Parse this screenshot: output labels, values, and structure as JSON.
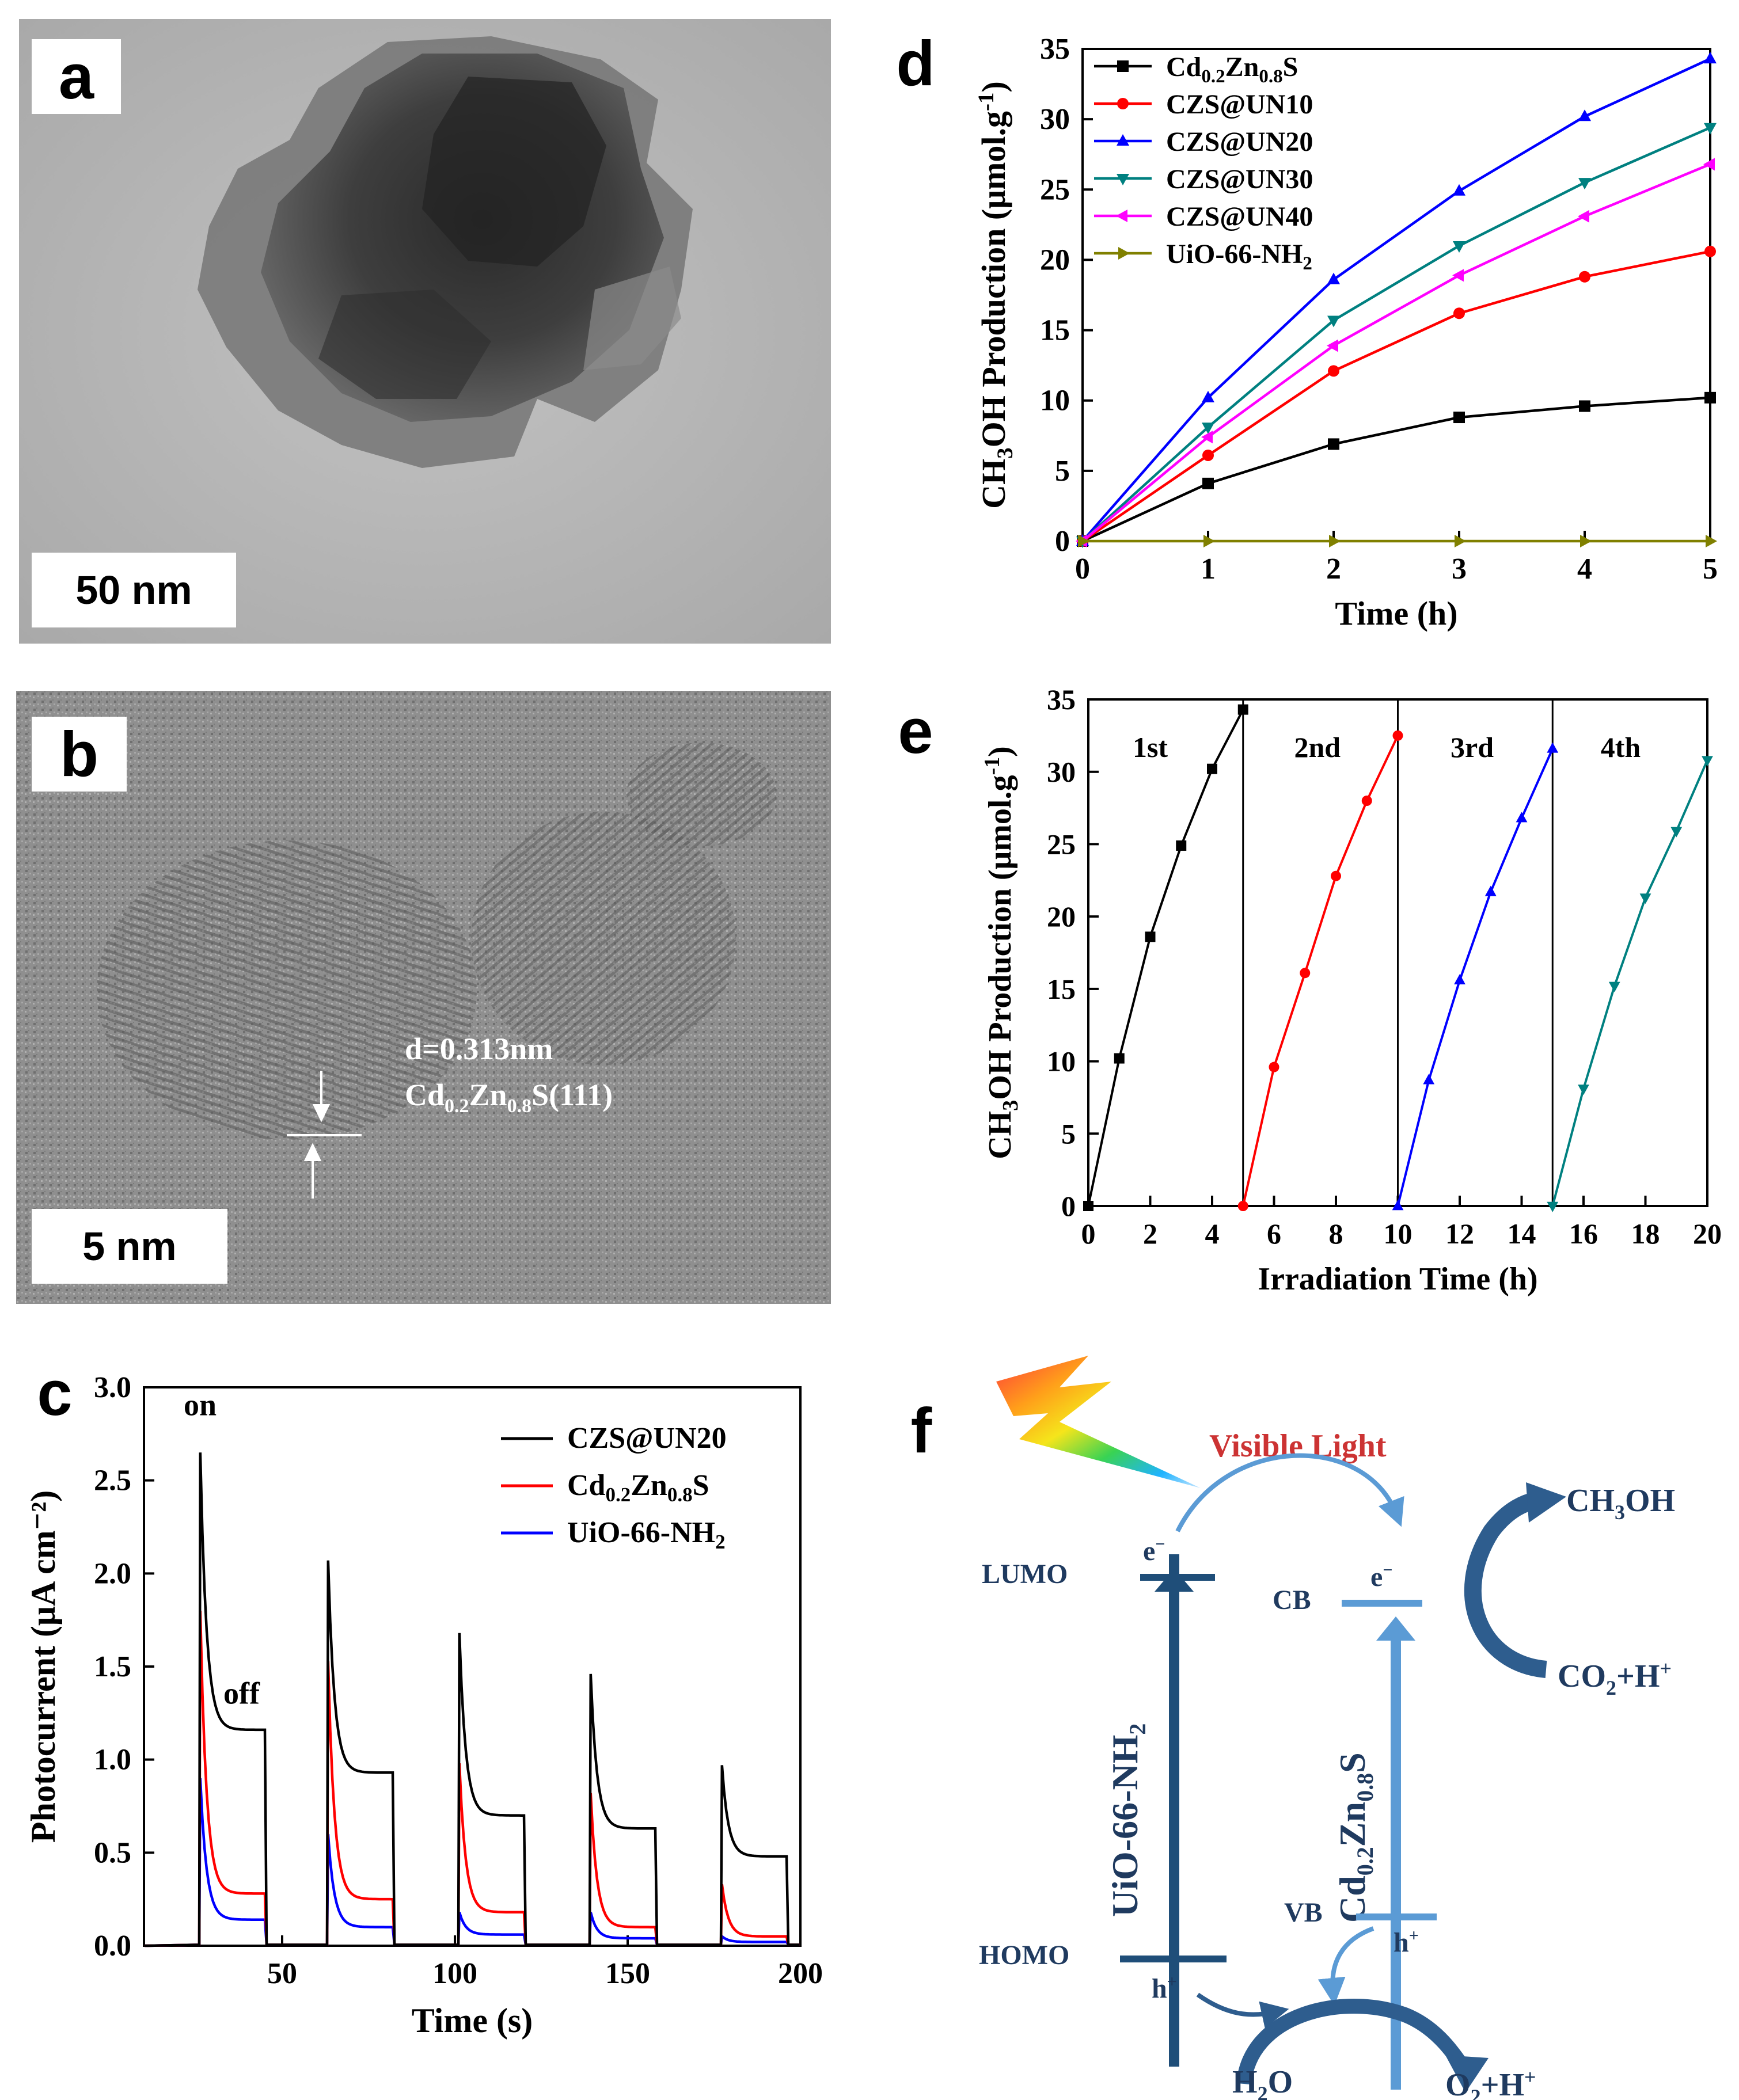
{
  "panels": {
    "a": {
      "letter": "a",
      "scale_bar": "50 nm"
    },
    "b": {
      "letter": "b",
      "scale_bar": "5 nm",
      "annotation_d": "d=0.313nm",
      "annotation_plane": [
        "Cd",
        "0.2",
        "Zn",
        "0.8",
        "S(111)"
      ]
    },
    "c": {
      "letter": "c"
    },
    "d": {
      "letter": "d"
    },
    "e": {
      "letter": "e"
    },
    "f": {
      "letter": "f"
    }
  },
  "chart_data": [
    {
      "id": "c",
      "type": "line",
      "xlabel": "Time (s)",
      "ylabel": "Photocurrent (μA cm⁻²)",
      "xlim": [
        10,
        200
      ],
      "ylim": [
        0,
        3.0
      ],
      "xticks": [
        50,
        100,
        150,
        200
      ],
      "yticks": [
        0.0,
        0.5,
        1.0,
        1.5,
        2.0,
        2.5,
        3.0
      ],
      "annotations": {
        "on": "on",
        "off": "off"
      },
      "on_periods": [
        [
          26,
          45
        ],
        [
          63,
          82
        ],
        [
          101,
          120
        ],
        [
          139,
          158
        ],
        [
          177,
          196
        ]
      ],
      "series": [
        {
          "name": "CZS@UN20",
          "color": "#000000",
          "peaks": [
            2.65,
            2.07,
            1.68,
            1.46,
            0.97
          ],
          "plateaus": [
            1.16,
            0.93,
            0.7,
            0.63,
            0.48
          ]
        },
        {
          "name": "Cd0.2Zn0.8S",
          "color": "#ff0000",
          "peaks": [
            1.8,
            1.53,
            0.98,
            0.82,
            0.33
          ],
          "plateaus": [
            0.28,
            0.25,
            0.18,
            0.1,
            0.05
          ]
        },
        {
          "name": "UiO-66-NH2",
          "color": "#0000ff",
          "peaks": [
            0.9,
            0.6,
            0.18,
            0.18,
            0.05
          ],
          "plateaus": [
            0.14,
            0.1,
            0.06,
            0.04,
            0.02
          ]
        }
      ],
      "legend": [
        {
          "text": "CZS@UN20",
          "parts": [
            "CZS@UN20"
          ]
        },
        {
          "text": "Cd0.2Zn0.8S",
          "parts": [
            "Cd",
            "0.2",
            "Zn",
            "0.8",
            "S"
          ]
        },
        {
          "text": "UiO-66-NH2",
          "parts": [
            "UiO-66-NH",
            "2"
          ]
        }
      ]
    },
    {
      "id": "d",
      "type": "line",
      "xlabel": "Time (h)",
      "ylabel": "CH3OH Production (μmol.g⁻¹)",
      "xlim": [
        0,
        5
      ],
      "ylim": [
        0,
        35
      ],
      "xticks": [
        0,
        1,
        2,
        3,
        4,
        5
      ],
      "yticks": [
        0,
        5,
        10,
        15,
        20,
        25,
        30,
        35
      ],
      "x": [
        0,
        1,
        2,
        3,
        4,
        5
      ],
      "series": [
        {
          "name": "Cd0.2Zn0.8S",
          "parts": [
            "Cd",
            "0.2",
            "Zn",
            "0.8",
            "S"
          ],
          "color": "#000000",
          "marker": "square",
          "values": [
            0,
            4.1,
            6.9,
            8.8,
            9.6,
            10.2
          ]
        },
        {
          "name": "CZS@UN10",
          "parts": [
            "CZS@UN10"
          ],
          "color": "#ff0000",
          "marker": "circle",
          "values": [
            0,
            6.1,
            12.1,
            16.2,
            18.8,
            20.6
          ]
        },
        {
          "name": "CZS@UN20",
          "parts": [
            "CZS@UN20"
          ],
          "color": "#0000ff",
          "marker": "triangle-up",
          "values": [
            0,
            10.2,
            18.6,
            24.9,
            30.2,
            34.3
          ]
        },
        {
          "name": "CZS@UN30",
          "parts": [
            "CZS@UN30"
          ],
          "color": "#008080",
          "marker": "triangle-down",
          "values": [
            0,
            8.1,
            15.7,
            21.0,
            25.5,
            29.4
          ]
        },
        {
          "name": "CZS@UN40",
          "parts": [
            "CZS@UN40"
          ],
          "color": "#ff00ff",
          "marker": "triangle-left",
          "values": [
            0,
            7.4,
            13.9,
            18.9,
            23.1,
            26.8
          ]
        },
        {
          "name": "UiO-66-NH2",
          "parts": [
            "UiO-66-NH",
            "2"
          ],
          "color": "#808000",
          "marker": "triangle-right",
          "values": [
            0,
            0,
            0,
            0,
            0,
            0
          ]
        }
      ]
    },
    {
      "id": "e",
      "type": "line",
      "xlabel": "Irradiation Time (h)",
      "ylabel": "CH3OH Production (μmol.g⁻¹)",
      "xlim": [
        0,
        20
      ],
      "ylim": [
        0,
        35
      ],
      "xticks": [
        0,
        2,
        4,
        6,
        8,
        10,
        12,
        14,
        16,
        18,
        20
      ],
      "yticks": [
        0,
        5,
        10,
        15,
        20,
        25,
        30,
        35
      ],
      "dividers": [
        5,
        10,
        15
      ],
      "cycle_labels": [
        {
          "text": "1st",
          "x": 2
        },
        {
          "text": "2nd",
          "x": 7.4
        },
        {
          "text": "3rd",
          "x": 12.4
        },
        {
          "text": "4th",
          "x": 17.2
        }
      ],
      "series": [
        {
          "name": "1st",
          "color": "#000000",
          "marker": "square",
          "x": [
            0,
            1,
            2,
            3,
            4,
            5
          ],
          "values": [
            0,
            10.2,
            18.6,
            24.9,
            30.2,
            34.3
          ]
        },
        {
          "name": "2nd",
          "color": "#ff0000",
          "marker": "circle",
          "x": [
            5,
            6,
            7,
            8,
            9,
            10
          ],
          "values": [
            0,
            9.6,
            16.1,
            22.8,
            28.0,
            32.5
          ]
        },
        {
          "name": "3rd",
          "color": "#0000ff",
          "marker": "triangle-up",
          "x": [
            10,
            11,
            12,
            13,
            14,
            15
          ],
          "values": [
            0,
            8.7,
            15.6,
            21.7,
            26.8,
            31.6
          ]
        },
        {
          "name": "4th",
          "color": "#008080",
          "marker": "triangle-down",
          "x": [
            15,
            16,
            17,
            18,
            19,
            20
          ],
          "values": [
            0,
            8.1,
            15.2,
            21.3,
            25.9,
            30.8
          ]
        }
      ]
    }
  ],
  "diagram_f": {
    "visible_light": "Visible Light",
    "lumo": "LUMO",
    "homo": "HOMO",
    "cb": "CB",
    "vb": "VB",
    "electron": [
      "e",
      "−"
    ],
    "hole": [
      "h",
      "+"
    ],
    "uio_label": [
      "UiO-66-NH",
      "2"
    ],
    "czs_label": [
      "Cd",
      "0.2",
      "Zn",
      "0.8",
      "S"
    ],
    "ch3oh": [
      "CH",
      "3",
      "OH"
    ],
    "co2": [
      "CO",
      "2",
      "+H",
      "+"
    ],
    "h2o": [
      "H",
      "2",
      "O"
    ],
    "o2": [
      "O",
      "2",
      "+H",
      "+"
    ],
    "colors": {
      "dark_band": "#1f4e79",
      "light_band": "#5b9bd5",
      "arrow_dark": "#2e5d8e",
      "arrow_light": "#5b9bd5",
      "light_text": "#cc3333"
    }
  }
}
